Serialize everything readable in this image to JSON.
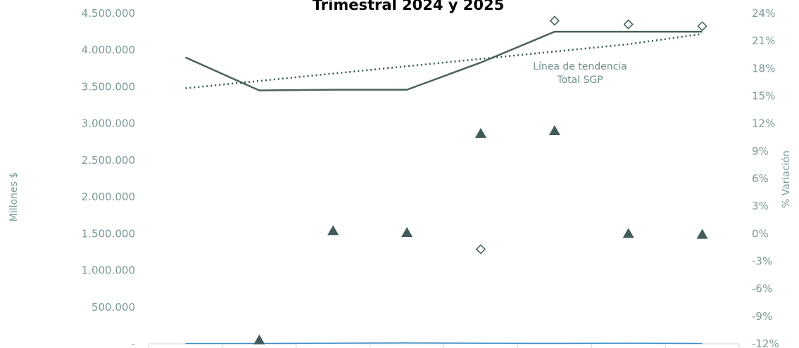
{
  "chart_data": {
    "type": "line",
    "title": "Trimestral 2024 y 2025",
    "ylabel": "Millones $",
    "y2label": "% Variación",
    "ylim": [
      0,
      4500000
    ],
    "y2lim": [
      -12,
      24
    ],
    "y_ticks": [
      "-",
      "500.000",
      "1.000.000",
      "1.500.000",
      "2.000.000",
      "2.500.000",
      "3.000.000",
      "3.500.000",
      "4.000.000",
      "4.500.000"
    ],
    "y2_ticks": [
      "-12%",
      "-9%",
      "-6%",
      "-3%",
      "0%",
      "3%",
      "6%",
      "9%",
      "12%",
      "15%",
      "18%",
      "21%",
      "24%"
    ],
    "annotation": [
      "Línea de tendencia",
      "Total SGP"
    ],
    "n_categories": 8,
    "series": [
      {
        "axis": "left",
        "style": "line",
        "color": "#4a6356",
        "values": [
          3900000,
          3450000,
          3460000,
          3460000,
          3830000,
          4250000,
          4250000,
          4250000
        ]
      },
      {
        "axis": "left",
        "style": "dotted-trend",
        "color": "#2f5a45",
        "values": [
          3480000,
          3580000,
          3680000,
          3780000,
          3880000,
          3980000,
          4080000,
          4220000
        ]
      },
      {
        "axis": "left",
        "style": "thin-line",
        "color": "#3d8fc9",
        "values": [
          5000,
          5000,
          8000,
          12000,
          8000,
          6000,
          8000,
          5000
        ]
      },
      {
        "axis": "right",
        "style": "triangle",
        "color": "#3f5a58",
        "values": [
          null,
          -11.6,
          0.3,
          0.1,
          10.9,
          11.2,
          0.0,
          -0.1
        ]
      },
      {
        "axis": "right",
        "style": "diamond",
        "color": "#3f5a58",
        "values": [
          null,
          null,
          null,
          null,
          -1.7,
          23.2,
          22.8,
          22.6
        ]
      }
    ],
    "grid": false
  }
}
